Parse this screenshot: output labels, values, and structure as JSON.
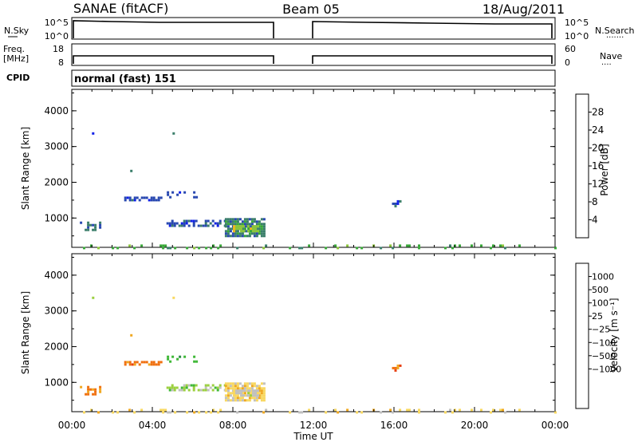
{
  "header": {
    "station": "SANAE (fitACF)",
    "beam": "Beam 05",
    "date": "18/Aug/2011"
  },
  "panels": {
    "nsky_label": "N.Sky",
    "nsky_ticks": [
      "10^5",
      "10^0"
    ],
    "nsearch_label": "N.Search",
    "nsearch_ticks": [
      "10^5",
      "10^0"
    ],
    "freq_label_1": "Freq.",
    "freq_label_2": "[MHz]",
    "freq_ticks": [
      "18",
      "8"
    ],
    "nave_label": "Nave",
    "nave_ticks": [
      "60",
      "0"
    ],
    "cpid_label": "CPID",
    "cpid_value": "normal (fast) 151"
  },
  "colors": {
    "power": [
      "#1020e8",
      "#2848b0",
      "#3a7e6a",
      "#38a838",
      "#8cc63a",
      "#f0b818",
      "#f08c10",
      "#e85a10",
      "#e02010"
    ],
    "velocity": [
      "#1020c8",
      "#2a4aa8",
      "#2e8a48",
      "#40b838",
      "#9cd040",
      "#c0c0c0",
      "#f8d860",
      "#f0a820",
      "#f07010",
      "#e84010",
      "#e01010"
    ]
  },
  "chart_data": [
    {
      "type": "heatmap",
      "quantity": "power",
      "ylabel": "Slant Range [km]",
      "yticks": [
        "1000",
        "2000",
        "3000",
        "4000"
      ],
      "ylim": [
        180,
        4600
      ],
      "xlim": [
        0,
        24
      ],
      "colorbar_label": "Power [dB]",
      "colorbar_ticks": [
        "4",
        "8",
        "12",
        "16",
        "20",
        "24",
        "28"
      ],
      "colorbar_range": [
        0,
        32
      ],
      "patches": [
        {
          "x": [
            0.4,
            1.4
          ],
          "y": [
            650,
            900
          ],
          "density": 0.5,
          "level": 2
        },
        {
          "x": [
            2.6,
            4.5
          ],
          "y": [
            1480,
            1600
          ],
          "density": 0.6,
          "level": 1
        },
        {
          "x": [
            4.6,
            6.2
          ],
          "y": [
            1550,
            1750
          ],
          "density": 0.35,
          "level": 1
        },
        {
          "x": [
            4.7,
            7.6
          ],
          "y": [
            800,
            950
          ],
          "density": 0.6,
          "level": 1
        },
        {
          "x": [
            7.6,
            9.6
          ],
          "y": [
            500,
            1000
          ],
          "density": 0.85,
          "level": 2
        },
        {
          "x": [
            8.0,
            9.2
          ],
          "y": [
            600,
            800
          ],
          "density": 0.6,
          "level": 4
        },
        {
          "x": [
            0.2,
            24.0
          ],
          "y": [
            180,
            260
          ],
          "density": 0.14,
          "level": 3
        },
        {
          "x": [
            15.9,
            16.3
          ],
          "y": [
            1350,
            1500
          ],
          "density": 0.4,
          "level": 1
        },
        {
          "x": [
            1.0,
            1.1
          ],
          "y": [
            3350,
            3400
          ],
          "density": 1.0,
          "level": 1
        },
        {
          "x": [
            5.0,
            5.1
          ],
          "y": [
            3350,
            3400
          ],
          "density": 1.0,
          "level": 1
        },
        {
          "x": [
            2.9,
            3.0
          ],
          "y": [
            2300,
            2350
          ],
          "density": 1.0,
          "level": 1
        }
      ]
    },
    {
      "type": "heatmap",
      "quantity": "velocity",
      "ylabel": "Slant Range [km]",
      "yticks": [
        "1000",
        "2000",
        "3000",
        "4000"
      ],
      "ylim": [
        180,
        4600
      ],
      "xlim": [
        0,
        24
      ],
      "xlabel": "Time UT",
      "xticks": [
        "00:00",
        "04:00",
        "08:00",
        "12:00",
        "16:00",
        "20:00",
        "00:00"
      ],
      "colorbar_label": "Velocity [m s⁻¹]",
      "colorbar_ticks": [
        "1000",
        "500",
        "100",
        "25",
        "−25",
        "−100",
        "−500",
        "−1000"
      ],
      "patches": [
        {
          "x": [
            0.4,
            1.4
          ],
          "y": [
            650,
            900
          ],
          "density": 0.5,
          "level": 8
        },
        {
          "x": [
            2.6,
            4.5
          ],
          "y": [
            1480,
            1600
          ],
          "density": 0.6,
          "level": 8
        },
        {
          "x": [
            4.6,
            6.2
          ],
          "y": [
            1550,
            1750
          ],
          "density": 0.35,
          "level": 3
        },
        {
          "x": [
            4.7,
            7.6
          ],
          "y": [
            800,
            950
          ],
          "density": 0.6,
          "level": 4
        },
        {
          "x": [
            7.6,
            9.6
          ],
          "y": [
            500,
            1000
          ],
          "density": 0.85,
          "level": 6
        },
        {
          "x": [
            8.0,
            9.2
          ],
          "y": [
            600,
            800
          ],
          "density": 0.6,
          "level": 5
        },
        {
          "x": [
            0.2,
            24.0
          ],
          "y": [
            180,
            260
          ],
          "density": 0.14,
          "level": 6
        },
        {
          "x": [
            15.9,
            16.3
          ],
          "y": [
            1350,
            1500
          ],
          "density": 0.4,
          "level": 8
        },
        {
          "x": [
            1.0,
            1.1
          ],
          "y": [
            3350,
            3400
          ],
          "density": 1.0,
          "level": 5
        },
        {
          "x": [
            5.0,
            5.1
          ],
          "y": [
            3350,
            3400
          ],
          "density": 1.0,
          "level": 5
        },
        {
          "x": [
            2.9,
            3.0
          ],
          "y": [
            2300,
            2350
          ],
          "density": 1.0,
          "level": 6
        }
      ]
    }
  ],
  "data_gaps_ut": [
    [
      10.0,
      12.0
    ]
  ]
}
